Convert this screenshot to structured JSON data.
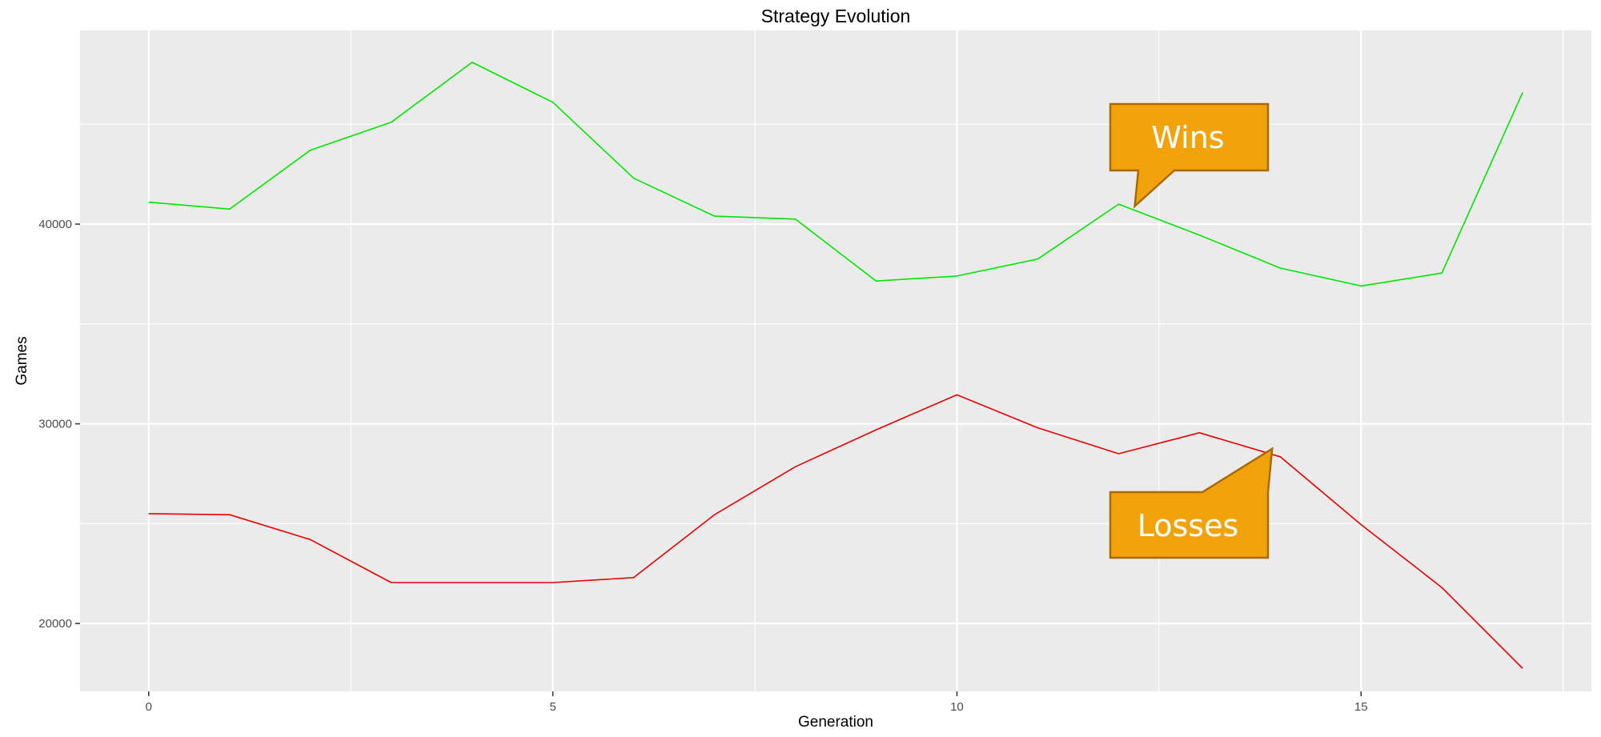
{
  "chart_data": {
    "type": "line",
    "title": "Strategy Evolution",
    "xlabel": "Generation",
    "ylabel": "Games",
    "x": [
      0,
      1,
      2,
      3,
      4,
      5,
      6,
      7,
      8,
      9,
      10,
      11,
      12,
      13,
      14,
      15,
      16,
      17
    ],
    "xlim": [
      -0.85,
      17.85
    ],
    "ylim": [
      16600,
      49700
    ],
    "x_ticks": [
      0,
      5,
      10,
      15
    ],
    "y_ticks": [
      20000,
      30000,
      40000
    ],
    "series": [
      {
        "color": "#00e600",
        "values": [
          41100,
          40750,
          43700,
          45100,
          48100,
          46100,
          42300,
          40400,
          40250,
          37150,
          37400,
          38250,
          41000,
          39450,
          37800,
          36900,
          37550,
          46600
        ]
      },
      {
        "color": "#e60000",
        "values": [
          25500,
          25450,
          24200,
          22050,
          22050,
          22050,
          22300,
          25450,
          27850,
          29700,
          31450,
          29800,
          28500,
          29550,
          28350,
          24950,
          21800,
          17750
        ]
      }
    ],
    "annotations": [
      {
        "text": "Wins",
        "target_x": 12.2,
        "target_y": 40900,
        "color": "#f2a30b"
      },
      {
        "text": "Losses",
        "target_x": 13.9,
        "target_y": 28750,
        "color": "#f2a30b"
      }
    ],
    "grid": true,
    "panel_background": "#ebebeb",
    "grid_color": "#ffffff"
  }
}
